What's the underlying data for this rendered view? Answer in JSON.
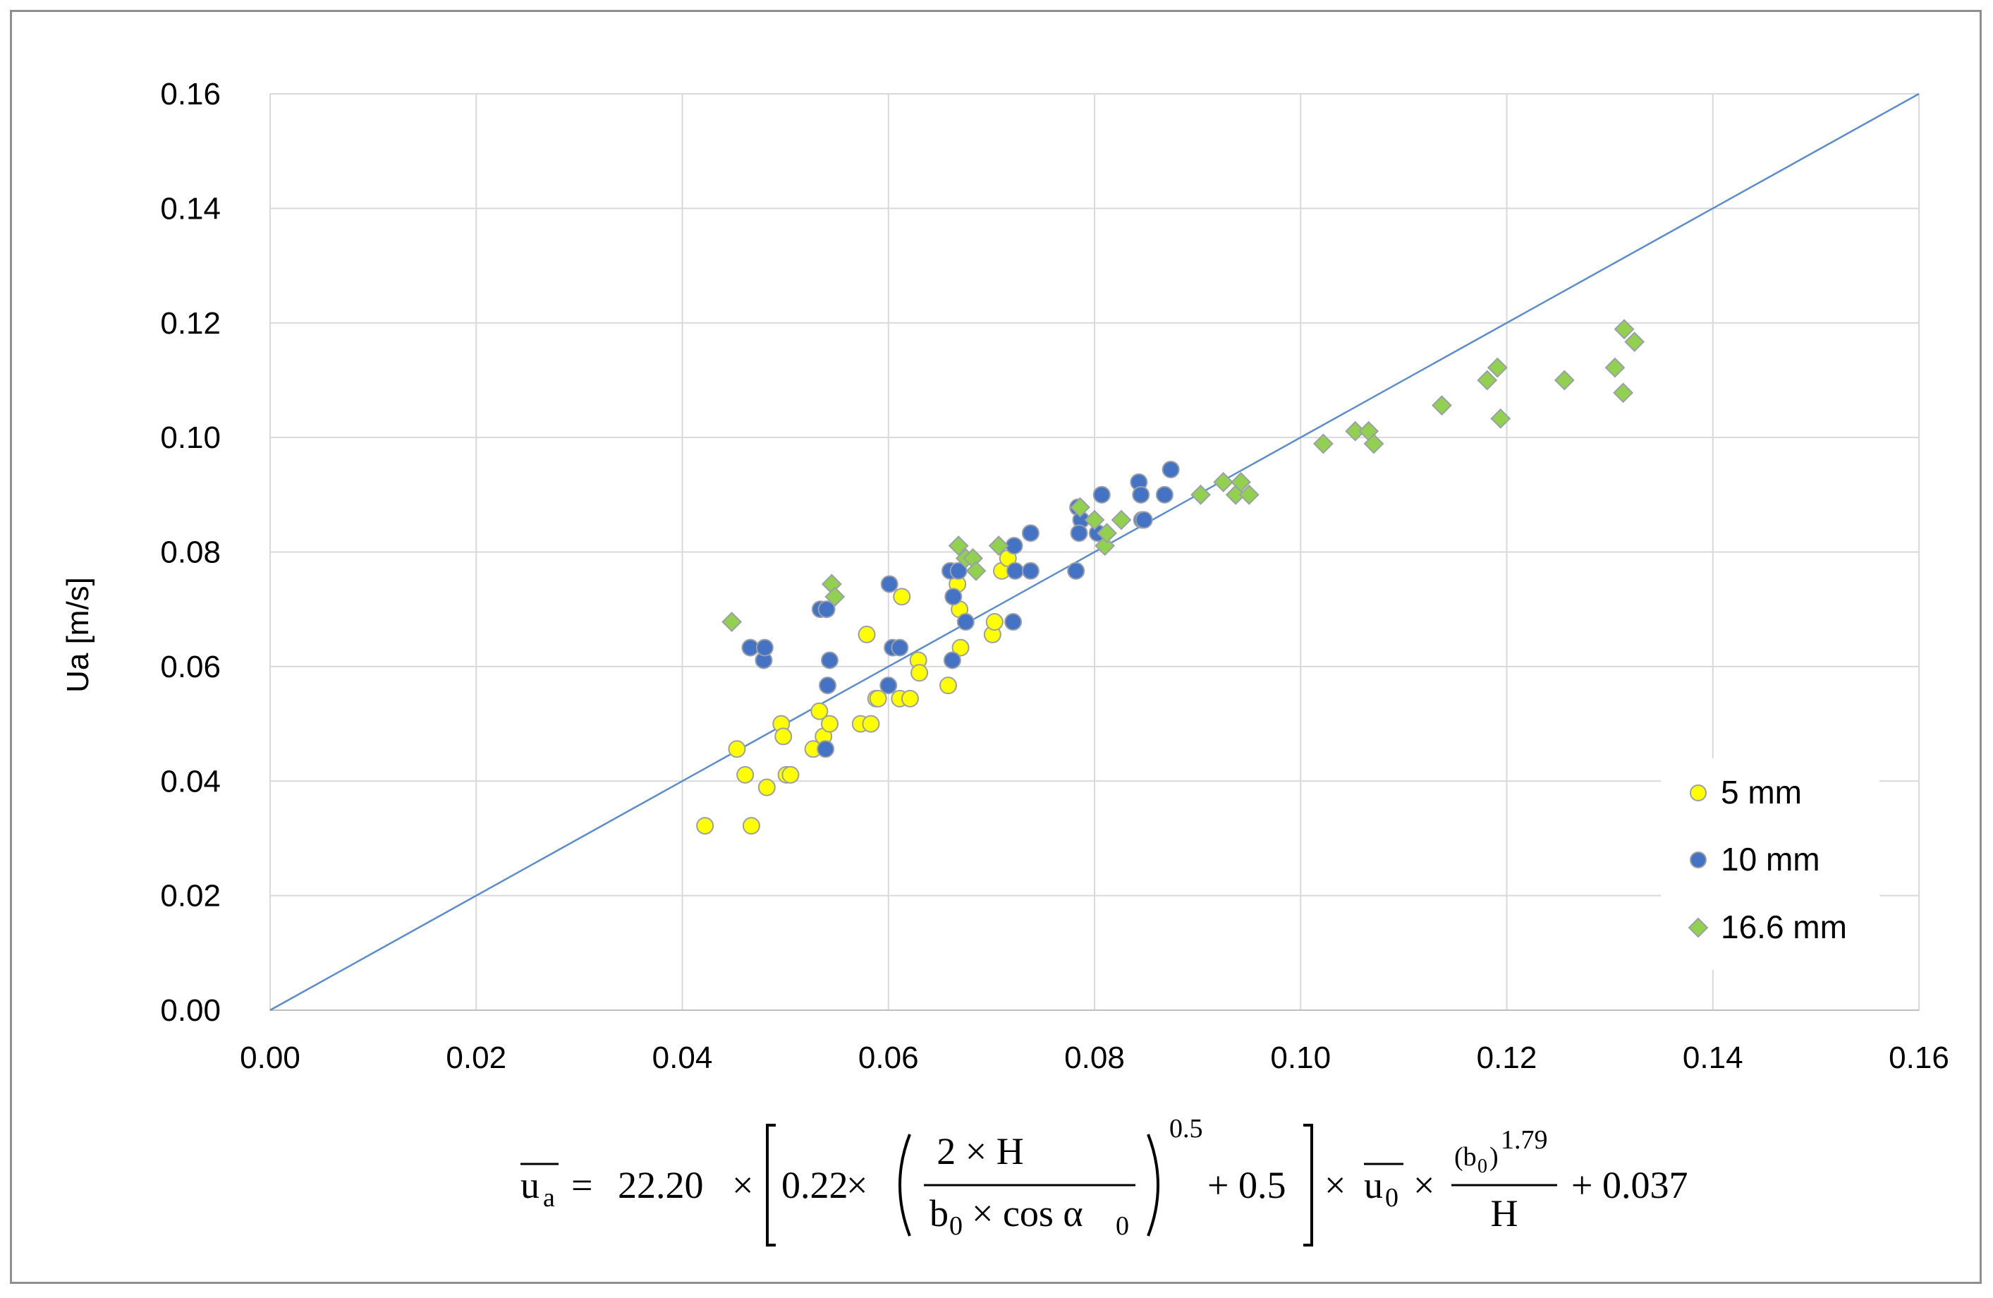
{
  "chart_data": {
    "type": "scatter",
    "title": "",
    "xlabel_formula": {
      "lhs": "u",
      "lhs_sub": "a",
      "coef": "22.20",
      "inner_coef": "0.22",
      "frac_num": "2 × H",
      "frac_den_b": "b",
      "frac_den_b_sub": "0",
      "frac_den_cos": "× cos α",
      "frac_den_alpha_sub": "0",
      "exponent": "0.5",
      "plus_term": "+ 0.5",
      "u0": "u",
      "u0_sub": "0",
      "frac2_num_b": "(b",
      "frac2_num_sub": "0",
      "frac2_num_close": ")",
      "frac2_exp": "1.79",
      "frac2_den": "H",
      "constant": "+ 0.037",
      "times": "×",
      "equals": "="
    },
    "ylabel": "Ua [m/s]",
    "xlim": [
      0,
      0.16
    ],
    "ylim": [
      0,
      0.16
    ],
    "x_ticks": [
      "0.00",
      "0.02",
      "0.04",
      "0.06",
      "0.08",
      "0.10",
      "0.12",
      "0.14",
      "0.16"
    ],
    "y_ticks": [
      "0.00",
      "0.02",
      "0.04",
      "0.06",
      "0.08",
      "0.10",
      "0.12",
      "0.14",
      "0.16"
    ],
    "grid": true,
    "reference_line": {
      "name": "y = x",
      "from": [
        0,
        0
      ],
      "to": [
        0.16,
        0.16
      ],
      "color": "#5b8ccc"
    },
    "legend_position": "right",
    "series": [
      {
        "name": "5 mm",
        "marker": "circle",
        "color": "#ffff00",
        "edge": "#9aa0a6",
        "points": [
          [
            0.0422,
            0.0322
          ],
          [
            0.0453,
            0.0456
          ],
          [
            0.0461,
            0.0411
          ],
          [
            0.0467,
            0.0322
          ],
          [
            0.0482,
            0.0389
          ],
          [
            0.0496,
            0.05
          ],
          [
            0.0498,
            0.0478
          ],
          [
            0.0501,
            0.0411
          ],
          [
            0.0505,
            0.0411
          ],
          [
            0.0527,
            0.0456
          ],
          [
            0.0533,
            0.0522
          ],
          [
            0.0537,
            0.0478
          ],
          [
            0.0543,
            0.05
          ],
          [
            0.0573,
            0.05
          ],
          [
            0.0579,
            0.0656
          ],
          [
            0.0583,
            0.05
          ],
          [
            0.0588,
            0.0544
          ],
          [
            0.059,
            0.0544
          ],
          [
            0.0611,
            0.0544
          ],
          [
            0.0613,
            0.0722
          ],
          [
            0.0621,
            0.0544
          ],
          [
            0.0629,
            0.0611
          ],
          [
            0.063,
            0.0589
          ],
          [
            0.0658,
            0.0567
          ],
          [
            0.0667,
            0.0744
          ],
          [
            0.0669,
            0.07
          ],
          [
            0.067,
            0.0633
          ],
          [
            0.0701,
            0.0656
          ],
          [
            0.0703,
            0.0678
          ],
          [
            0.071,
            0.0767
          ],
          [
            0.0716,
            0.0789
          ]
        ]
      },
      {
        "name": "10 mm",
        "marker": "circle",
        "color": "#4472c4",
        "edge": "#9aa0a6",
        "points": [
          [
            0.0466,
            0.0633
          ],
          [
            0.0479,
            0.0611
          ],
          [
            0.048,
            0.0633
          ],
          [
            0.0534,
            0.07
          ],
          [
            0.054,
            0.07
          ],
          [
            0.0539,
            0.0456
          ],
          [
            0.0541,
            0.0567
          ],
          [
            0.0543,
            0.0611
          ],
          [
            0.06,
            0.0567
          ],
          [
            0.0601,
            0.0744
          ],
          [
            0.0604,
            0.0633
          ],
          [
            0.0611,
            0.0633
          ],
          [
            0.066,
            0.0767
          ],
          [
            0.0662,
            0.0611
          ],
          [
            0.0663,
            0.0722
          ],
          [
            0.0668,
            0.0767
          ],
          [
            0.0675,
            0.0678
          ],
          [
            0.0722,
            0.0811
          ],
          [
            0.0723,
            0.0767
          ],
          [
            0.0721,
            0.0678
          ],
          [
            0.0738,
            0.0833
          ],
          [
            0.0738,
            0.0767
          ],
          [
            0.0782,
            0.0767
          ],
          [
            0.0784,
            0.0878
          ],
          [
            0.0787,
            0.0856
          ],
          [
            0.0785,
            0.0833
          ],
          [
            0.0803,
            0.0833
          ],
          [
            0.0807,
            0.09
          ],
          [
            0.0843,
            0.0922
          ],
          [
            0.0845,
            0.09
          ],
          [
            0.0846,
            0.0856
          ],
          [
            0.0848,
            0.0856
          ],
          [
            0.0868,
            0.09
          ],
          [
            0.0874,
            0.0944
          ]
        ]
      },
      {
        "name": "16.6 mm",
        "marker": "diamond",
        "color": "#92d050",
        "edge": "#9aa0a6",
        "points": [
          [
            0.0448,
            0.0678
          ],
          [
            0.0545,
            0.0744
          ],
          [
            0.0548,
            0.0722
          ],
          [
            0.0668,
            0.0811
          ],
          [
            0.0675,
            0.0789
          ],
          [
            0.0682,
            0.0789
          ],
          [
            0.0685,
            0.0767
          ],
          [
            0.0707,
            0.0811
          ],
          [
            0.0786,
            0.0878
          ],
          [
            0.08,
            0.0856
          ],
          [
            0.081,
            0.0811
          ],
          [
            0.0812,
            0.0833
          ],
          [
            0.0826,
            0.0856
          ],
          [
            0.0903,
            0.09
          ],
          [
            0.0925,
            0.0922
          ],
          [
            0.0937,
            0.09
          ],
          [
            0.0942,
            0.0922
          ],
          [
            0.095,
            0.09
          ],
          [
            0.1022,
            0.0989
          ],
          [
            0.1053,
            0.1011
          ],
          [
            0.1066,
            0.1011
          ],
          [
            0.1071,
            0.0989
          ],
          [
            0.1137,
            0.1056
          ],
          [
            0.1181,
            0.11
          ],
          [
            0.1191,
            0.1122
          ],
          [
            0.1194,
            0.1033
          ],
          [
            0.1256,
            0.11
          ],
          [
            0.1305,
            0.1122
          ],
          [
            0.1313,
            0.1078
          ],
          [
            0.1314,
            0.1189
          ],
          [
            0.1324,
            0.1167
          ]
        ]
      }
    ]
  }
}
